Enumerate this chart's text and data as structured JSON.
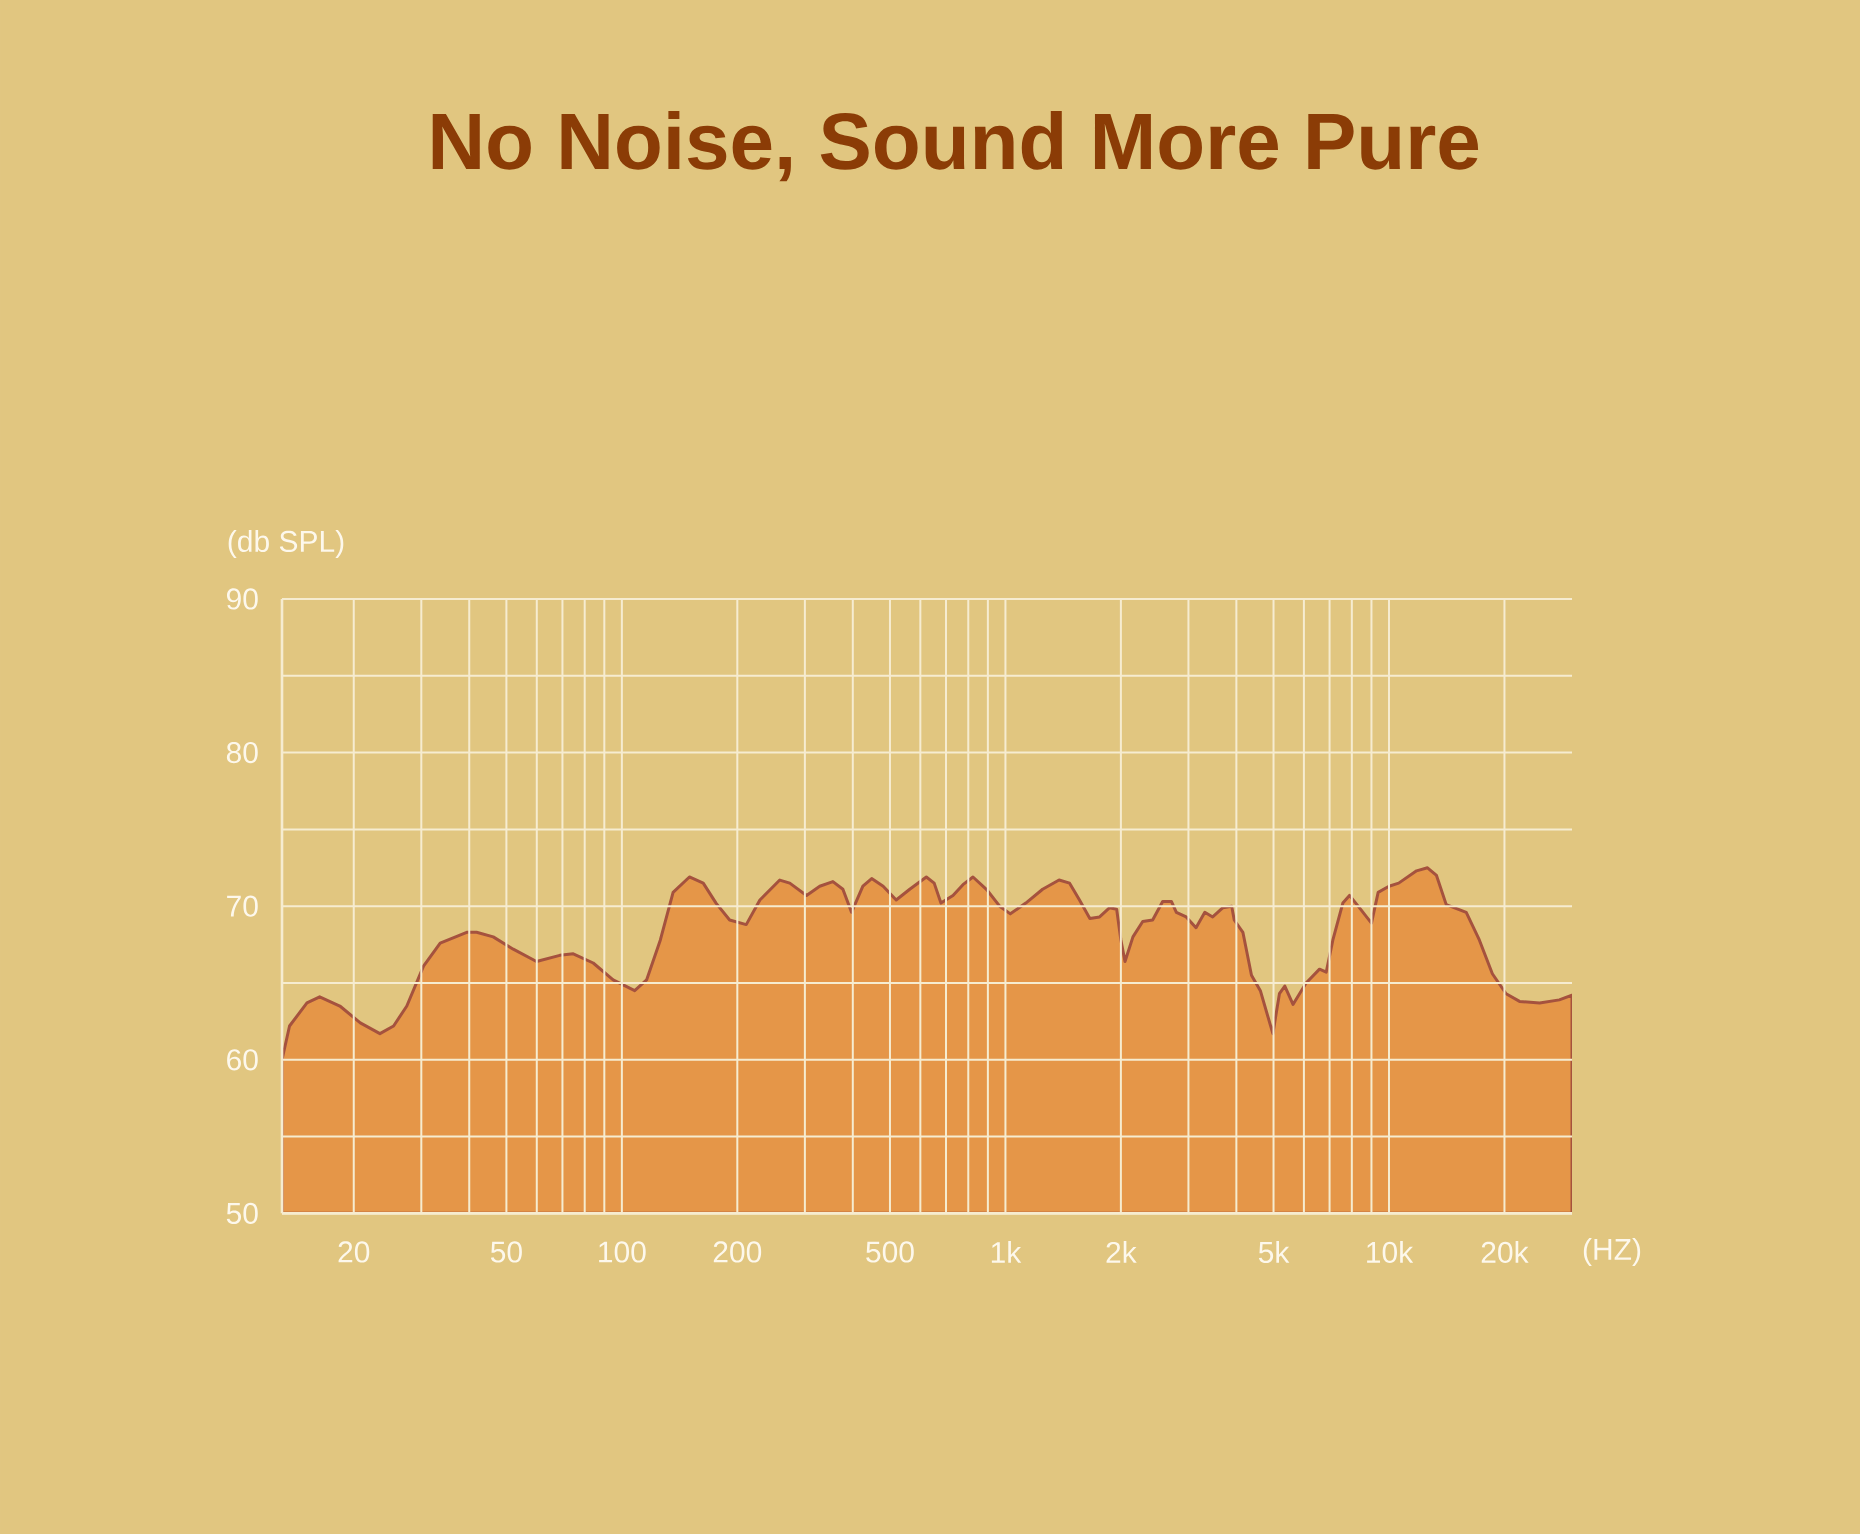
{
  "chart_data": {
    "type": "area",
    "title": "No Noise, Sound More Pure",
    "xlabel": "(HZ)",
    "ylabel": "(db SPL)",
    "log": "x",
    "grid": true,
    "color": "#e59648",
    "x": [
      13,
      13.6,
      15.1,
      16.3,
      18.4,
      20.8,
      23.4,
      25.4,
      27.5,
      30.4,
      33.6,
      39.4,
      41.8,
      46.2,
      52.1,
      59.9,
      68.9,
      74.7,
      84.2,
      94.9,
      108,
      116,
      126,
      136,
      150,
      163,
      176,
      191,
      211,
      229,
      258,
      274,
      303,
      328,
      355,
      377,
      397,
      425,
      448,
      480,
      519,
      563,
      622,
      652,
      679,
      730,
      775,
      823,
      892,
      966,
      1030,
      1130,
      1250,
      1380,
      1470,
      1560,
      1660,
      1760,
      1870,
      1950,
      2000,
      2050,
      2150,
      2280,
      2420,
      2570,
      2710,
      2790,
      2960,
      3140,
      3310,
      3470,
      3690,
      3890,
      3950,
      4160,
      4380,
      4620,
      4980,
      5180,
      5350,
      5620,
      6080,
      6590,
      6860,
      7140,
      7580,
      7890,
      8310,
      9000,
      9370,
      10000,
      10600,
      11800,
      12600,
      13300,
      14100,
      15900,
      17200,
      18600,
      20200,
      21900,
      24700,
      27800,
      30000
    ],
    "values": [
      60.0,
      62.2,
      63.7,
      64.1,
      63.5,
      62.4,
      61.7,
      62.2,
      63.5,
      66.1,
      67.6,
      68.3,
      68.3,
      68.0,
      67.2,
      66.4,
      66.8,
      66.9,
      66.3,
      65.2,
      64.5,
      65.2,
      67.8,
      70.9,
      71.9,
      71.5,
      70.2,
      69.1,
      68.8,
      70.4,
      71.7,
      71.5,
      70.7,
      71.3,
      71.6,
      71.1,
      69.6,
      71.3,
      71.8,
      71.3,
      70.4,
      71.1,
      71.9,
      71.5,
      70.2,
      70.7,
      71.4,
      71.9,
      71.1,
      70.0,
      69.5,
      70.2,
      71.1,
      71.7,
      71.5,
      70.4,
      69.2,
      69.3,
      69.9,
      69.8,
      67.8,
      66.4,
      68.0,
      69.0,
      69.1,
      70.3,
      70.3,
      69.6,
      69.3,
      68.6,
      69.6,
      69.3,
      69.9,
      70.0,
      69.1,
      68.3,
      65.5,
      64.5,
      61.7,
      64.3,
      64.8,
      63.6,
      65.0,
      65.9,
      65.7,
      67.8,
      70.2,
      70.7,
      70.0,
      68.9,
      70.9,
      71.3,
      71.5,
      72.3,
      72.5,
      72.0,
      70.1,
      69.6,
      67.8,
      65.6,
      64.3,
      63.8,
      63.7,
      63.9,
      64.2
    ],
    "xlim": [
      13,
      30000
    ],
    "xticks": [
      20,
      {
        "value": 30,
        "label": null
      },
      {
        "value": 40,
        "label": null
      },
      50,
      {
        "value": 60,
        "label": null
      },
      {
        "value": 70,
        "label": null
      },
      {
        "value": 80,
        "label": null
      },
      {
        "value": 90,
        "label": null
      },
      100,
      200,
      {
        "value": 300,
        "label": null
      },
      {
        "value": 400,
        "label": null
      },
      500,
      {
        "value": 600,
        "label": null
      },
      {
        "value": 700,
        "label": null
      },
      {
        "value": 800,
        "label": null
      },
      {
        "value": 900,
        "label": null
      },
      {
        "value": 1000,
        "label": "1k"
      },
      {
        "value": 2000,
        "label": "2k"
      },
      {
        "value": 3000,
        "label": null
      },
      {
        "value": 4000,
        "label": null
      },
      {
        "value": 5000,
        "label": "5k"
      },
      {
        "value": 6000,
        "label": null
      },
      {
        "value": 7000,
        "label": null
      },
      {
        "value": 8000,
        "label": null
      },
      {
        "value": 9000,
        "label": null
      },
      {
        "value": 10000,
        "label": "10k"
      },
      {
        "value": 20000,
        "label": "20k"
      }
    ],
    "ylim": [
      50,
      90
    ],
    "yticks": [
      50,
      {
        "value": 55,
        "label": null
      },
      60,
      {
        "value": 65,
        "label": null
      },
      70,
      {
        "value": 75,
        "label": null
      },
      80,
      {
        "value": 85,
        "label": null
      },
      90
    ]
  }
}
